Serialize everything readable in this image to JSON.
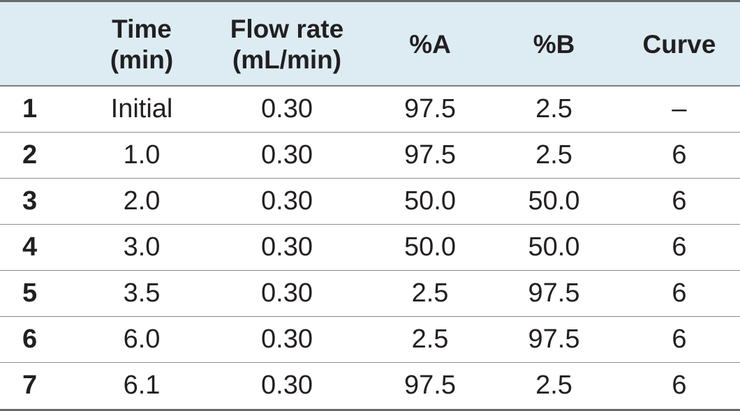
{
  "table": {
    "headers": [
      "",
      "Time\n(min)",
      "Flow rate\n(mL/min)",
      "%A",
      "%B",
      "Curve"
    ],
    "rows": [
      [
        "1",
        "Initial",
        "0.30",
        "97.5",
        "2.5",
        "–"
      ],
      [
        "2",
        "1.0",
        "0.30",
        "97.5",
        "2.5",
        "6"
      ],
      [
        "3",
        "2.0",
        "0.30",
        "50.0",
        "50.0",
        "6"
      ],
      [
        "4",
        "3.0",
        "0.30",
        "50.0",
        "50.0",
        "6"
      ],
      [
        "5",
        "3.5",
        "0.30",
        "2.5",
        "97.5",
        "6"
      ],
      [
        "6",
        "6.0",
        "0.30",
        "2.5",
        "97.5",
        "6"
      ],
      [
        "7",
        "6.1",
        "0.30",
        "97.5",
        "2.5",
        "6"
      ]
    ]
  },
  "colors": {
    "header_background": "#dcecf2",
    "text": "#231f20",
    "rule": "#6a6a6a"
  }
}
